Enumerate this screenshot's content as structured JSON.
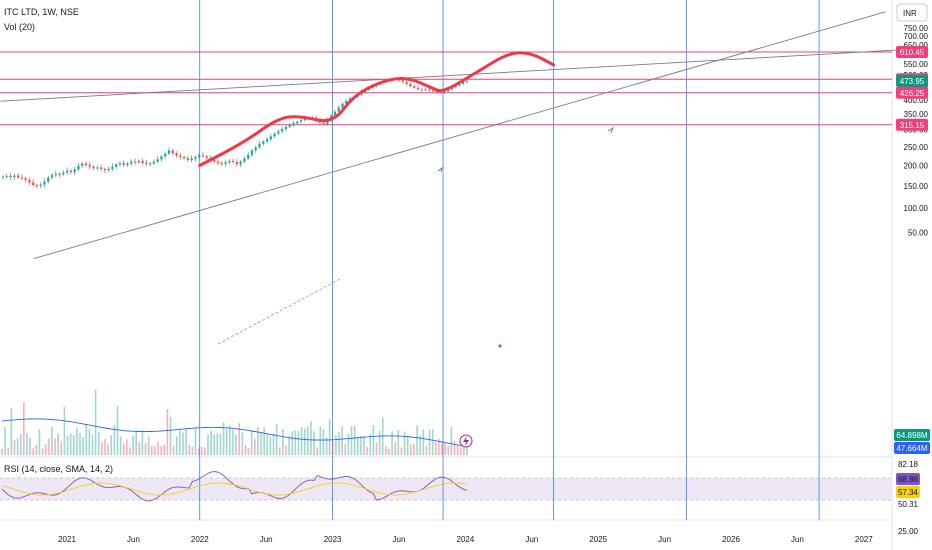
{
  "header": {
    "symbol_line": "ITC LTD, 1W, NSE",
    "volume_line": "Vol (20)",
    "currency_button": "INR"
  },
  "rsi_header": "RSI (14, close, SMA, 14, 2)",
  "colors": {
    "up": "#26a69a",
    "down": "#ef5350",
    "hline": "#f23f7a",
    "vline": "#3d7cf0",
    "trendline": "#787b86",
    "pattern": "#f23645",
    "rsi": "#7e57c2",
    "rsi_sma": "#f5d20a",
    "vol_ma": "#2962ff",
    "rsi_band": "#ede7f6"
  },
  "chart_data": [
    {
      "type": "candlestick",
      "title": "ITC LTD, 1W, NSE",
      "y_axis_ticks": [
        "750.00",
        "700.00",
        "650.00",
        "600.00",
        "550.00",
        "500.00",
        "450.00",
        "400.00",
        "350.00",
        "300.00",
        "250.00",
        "200.00",
        "150.00",
        "100.00",
        "50.00"
      ],
      "x_axis_ticks": [
        "2021",
        "Jun",
        "2022",
        "Jun",
        "2023",
        "Jun",
        "2024",
        "Jun",
        "2025",
        "Jun",
        "2026",
        "Jun",
        "2027"
      ],
      "x_range": [
        "2020-07",
        "2027-04"
      ],
      "ylim": [
        0,
        800
      ],
      "price_labels": [
        {
          "value": "610.45",
          "color": "#f23f7a"
        },
        {
          "value": "481.10",
          "color": "#f23f7a"
        },
        {
          "value": "473.95",
          "color": "#089981"
        },
        {
          "value": "426.25",
          "color": "#f23f7a"
        },
        {
          "value": "315.15",
          "color": "#f23f7a"
        }
      ],
      "horizontal_levels": [
        610.45,
        481.1,
        426.25,
        315.15
      ],
      "vertical_markers": [
        "2022-01",
        "2023-01",
        "2023-11",
        "2024-09",
        "2025-09",
        "2026-09"
      ],
      "trendlines": [
        {
          "from": {
            "t": "2020-07",
            "p": 395
          },
          "to": {
            "t": "2027-04",
            "p": 621
          }
        },
        {
          "from": {
            "t": "2020-10",
            "p": 0
          },
          "to": {
            "t": "2027-03",
            "p": 860
          }
        }
      ],
      "pattern_curve": [
        {
          "t": "2022-01",
          "p": 200
        },
        {
          "t": "2022-05",
          "p": 262
        },
        {
          "t": "2022-08",
          "p": 335
        },
        {
          "t": "2022-10",
          "p": 345
        },
        {
          "t": "2023-01",
          "p": 318
        },
        {
          "t": "2023-03",
          "p": 420
        },
        {
          "t": "2023-06",
          "p": 482
        },
        {
          "t": "2023-08",
          "p": 486
        },
        {
          "t": "2023-10",
          "p": 445
        },
        {
          "t": "2023-11",
          "p": 428
        },
        {
          "t": "2024-02",
          "p": 510
        },
        {
          "t": "2024-05",
          "p": 608
        },
        {
          "t": "2024-07",
          "p": 605
        },
        {
          "t": "2024-09",
          "p": 545
        }
      ],
      "series": [
        {
          "name": "ITC",
          "ohlc_close": [
            172,
            174,
            171,
            175,
            170,
            168,
            164,
            158,
            152,
            150,
            153,
            160,
            170,
            176,
            179,
            178,
            182,
            187,
            183,
            190,
            199,
            205,
            201,
            197,
            193,
            195,
            191,
            188,
            191,
            197,
            203,
            206,
            201,
            205,
            210,
            208,
            212,
            207,
            204,
            205,
            210,
            216,
            224,
            231,
            240,
            232,
            226,
            222,
            219,
            214,
            218,
            222,
            227,
            224,
            220,
            215,
            210,
            206,
            204,
            208,
            212,
            209,
            203,
            210,
            218,
            228,
            240,
            248,
            258,
            265,
            272,
            280,
            288,
            295,
            302,
            309,
            314,
            320,
            325,
            330,
            334,
            336,
            338,
            333,
            322,
            318,
            330,
            345,
            358,
            372,
            386,
            396,
            405,
            412,
            420,
            430,
            438,
            446,
            454,
            460,
            468,
            474,
            478,
            482,
            480,
            476,
            470,
            462,
            452,
            446,
            440,
            438,
            440,
            436,
            433,
            430,
            427,
            432,
            440,
            448,
            456,
            462,
            470,
            474
          ]
        }
      ]
    },
    {
      "type": "bar",
      "title": "Vol (20)",
      "value_labels": [
        {
          "value": "64.898M",
          "color": "#089981"
        },
        {
          "value": "47.664M",
          "color": "#2962ff"
        }
      ]
    },
    {
      "type": "line",
      "title": "RSI (14, close, SMA, 14, 2)",
      "y_axis_ticks": [
        "82.18",
        "50.31",
        "25.00"
      ],
      "value_labels": [
        {
          "value": "68.86",
          "color": "#7e57c2"
        },
        {
          "value": "57.34",
          "color": "#f5d20a"
        }
      ]
    }
  ]
}
